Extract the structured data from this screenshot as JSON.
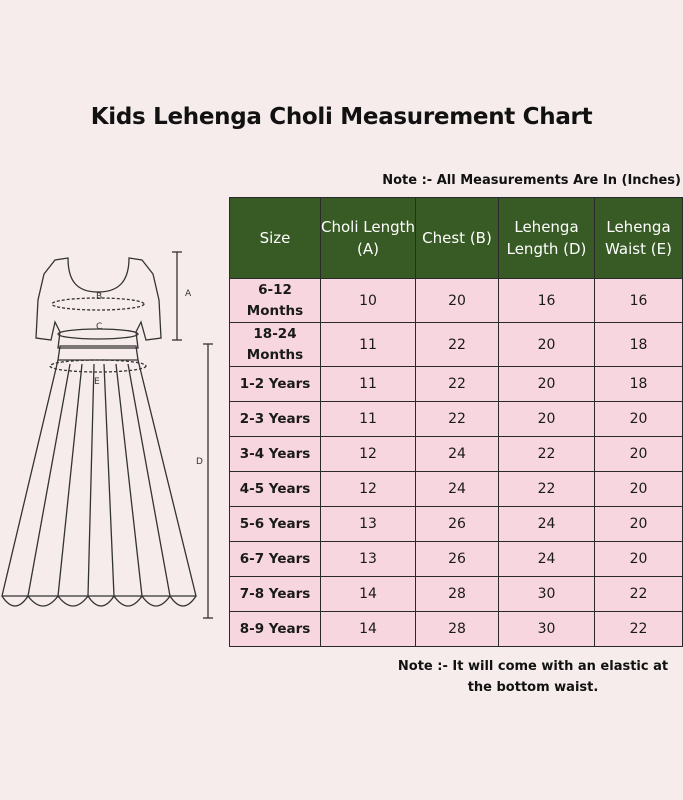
{
  "title": "Kids Lehenga Choli Measurement Chart",
  "note_top": "Note :- All Measurements Are In (Inches)",
  "note_bottom": "Note :- It will come with an elastic at the bottom waist.",
  "headers": [
    "Size",
    "Choli Length (A)",
    "Chest (B)",
    "Lehenga Length (D)",
    "Lehenga Waist (E)"
  ],
  "rows": [
    {
      "size": "6-12 Months",
      "a": "10",
      "b": "20",
      "d": "16",
      "e": "16"
    },
    {
      "size": "18-24 Months",
      "a": "11",
      "b": "22",
      "d": "20",
      "e": "18"
    },
    {
      "size": "1-2 Years",
      "a": "11",
      "b": "22",
      "d": "20",
      "e": "18"
    },
    {
      "size": "2-3 Years",
      "a": "11",
      "b": "22",
      "d": "20",
      "e": "20"
    },
    {
      "size": "3-4 Years",
      "a": "12",
      "b": "24",
      "d": "22",
      "e": "20"
    },
    {
      "size": "4-5 Years",
      "a": "12",
      "b": "24",
      "d": "22",
      "e": "20"
    },
    {
      "size": "5-6 Years",
      "a": "13",
      "b": "26",
      "d": "24",
      "e": "20"
    },
    {
      "size": "6-7 Years",
      "a": "13",
      "b": "26",
      "d": "24",
      "e": "20"
    },
    {
      "size": "7-8 Years",
      "a": "14",
      "b": "28",
      "d": "30",
      "e": "22"
    },
    {
      "size": "8-9 Years",
      "a": "14",
      "b": "28",
      "d": "30",
      "e": "22"
    }
  ],
  "diagram_labels": {
    "a": "A",
    "b": "B",
    "c": "C",
    "d": "D",
    "e": "E"
  },
  "colors": {
    "header_bg": "#385a25",
    "cell_bg": "#f7d6df",
    "page_bg": "#f7ecec"
  }
}
